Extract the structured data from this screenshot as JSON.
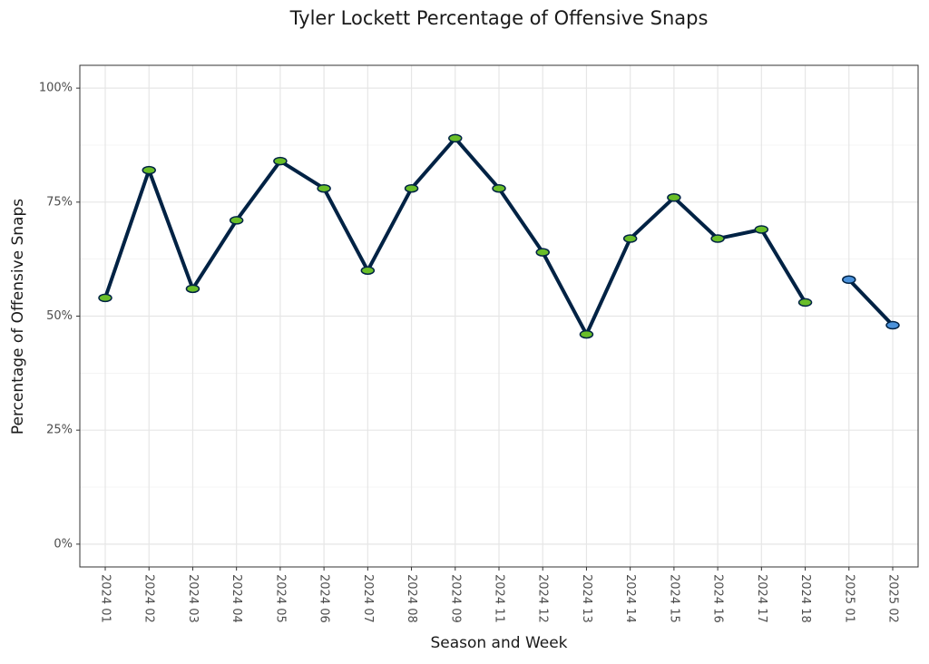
{
  "chart_data": {
    "type": "line",
    "title": "Tyler Lockett Percentage of Offensive Snaps",
    "x_label": "Season and Week",
    "y_label": "Percentage of Offensive Snaps",
    "categories": [
      "2024 01",
      "2024 02",
      "2024 03",
      "2024 04",
      "2024 05",
      "2024 06",
      "2024 07",
      "2024 08",
      "2024 09",
      "2024 11",
      "2024 12",
      "2024 13",
      "2024 14",
      "2024 15",
      "2024 16",
      "2024 17",
      "2024 18",
      "2025 01",
      "2025 02"
    ],
    "series": [
      {
        "color": "#002244",
        "marker_color": "#69be28",
        "values": [
          54,
          82,
          56,
          71,
          84,
          78,
          60,
          78,
          89,
          78,
          64,
          46,
          67,
          76,
          67,
          69,
          53,
          null,
          null
        ]
      },
      {
        "color": "#002244",
        "marker_color": "#4b92db",
        "values": [
          null,
          null,
          null,
          null,
          null,
          null,
          null,
          null,
          null,
          null,
          null,
          null,
          null,
          null,
          null,
          null,
          null,
          58,
          48
        ]
      }
    ],
    "ylim": [
      -5,
      105
    ],
    "yticks": [
      {
        "value": 0,
        "label": "0%"
      },
      {
        "value": 25,
        "label": "25%"
      },
      {
        "value": 50,
        "label": "50%"
      },
      {
        "value": 75,
        "label": "75%"
      },
      {
        "value": 100,
        "label": "100%"
      }
    ],
    "minor_yticks": [
      12.5,
      37.5,
      62.5,
      87.5
    ],
    "grid": true
  }
}
